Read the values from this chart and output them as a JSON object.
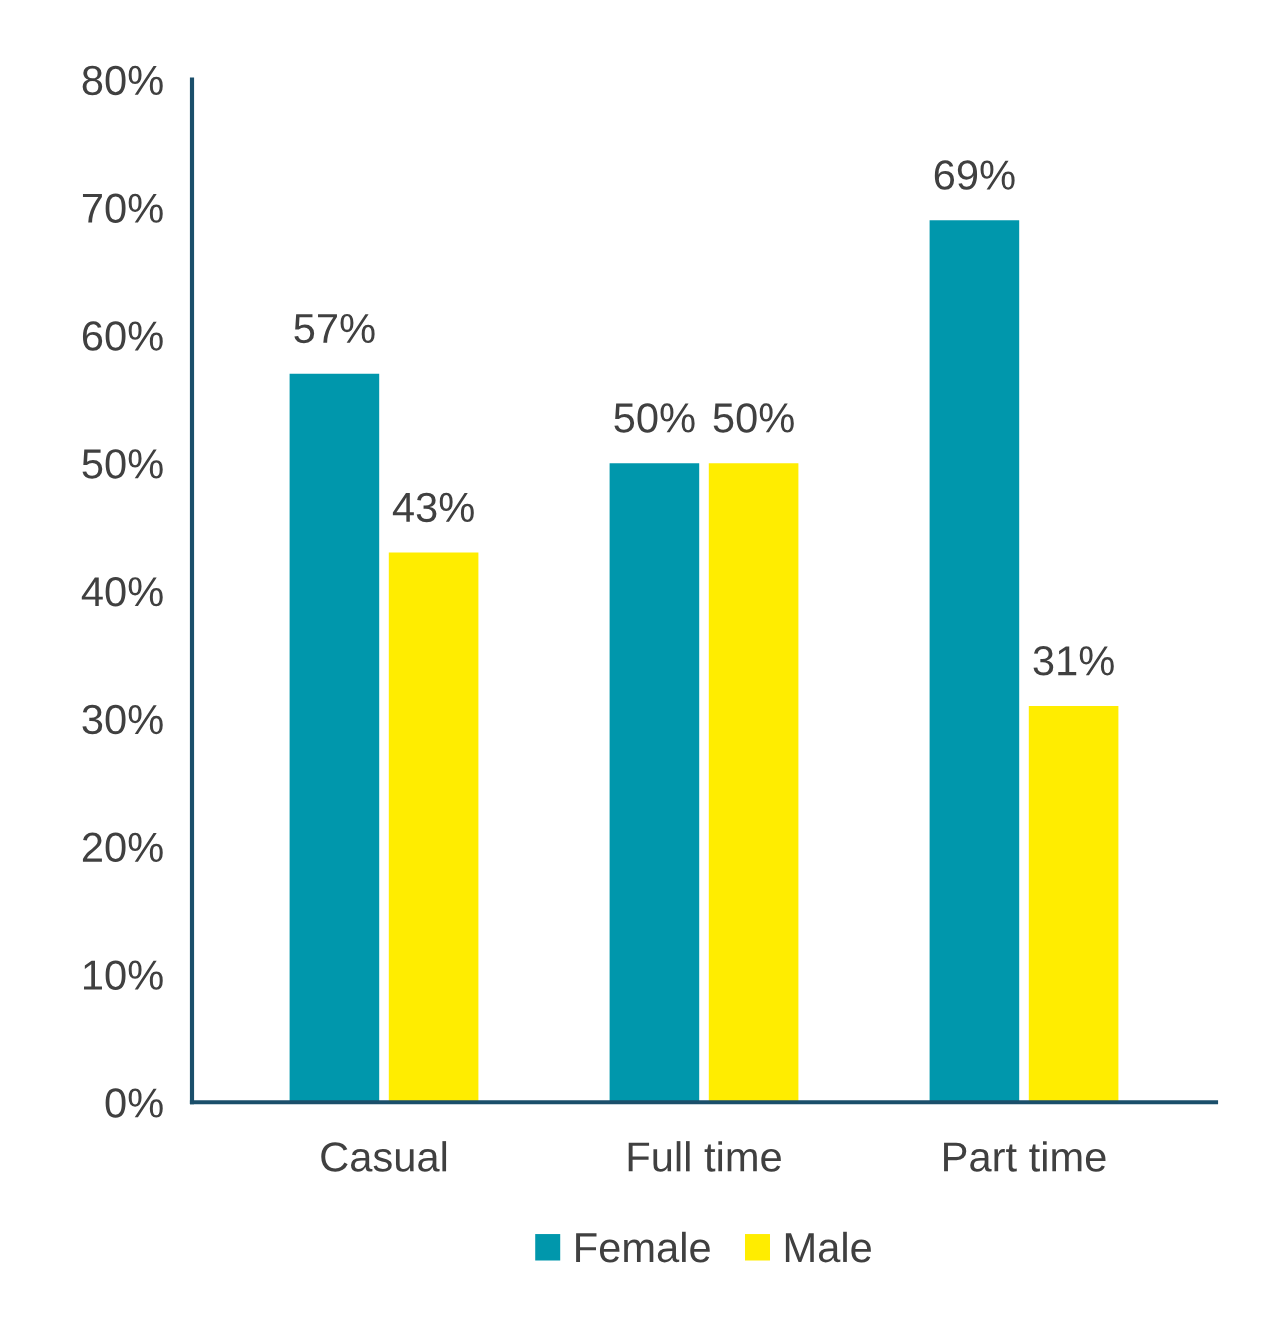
{
  "chart_data": {
    "type": "bar",
    "categories": [
      "Casual",
      "Full time",
      "Part time"
    ],
    "series": [
      {
        "name": "Female",
        "color": "#0097ac",
        "values": [
          57,
          50,
          69
        ],
        "value_labels": [
          "57%",
          "50%",
          "69%"
        ]
      },
      {
        "name": "Male",
        "color": "#ffed00",
        "values": [
          43,
          50,
          31
        ],
        "value_labels": [
          "43%",
          "50%",
          "31%"
        ]
      }
    ],
    "ylim": [
      0,
      80
    ],
    "yticks": [
      {
        "value": 0,
        "label": "0%"
      },
      {
        "value": 10,
        "label": "10%"
      },
      {
        "value": 20,
        "label": "20%"
      },
      {
        "value": 30,
        "label": "30%"
      },
      {
        "value": 40,
        "label": "40%"
      },
      {
        "value": 50,
        "label": "50%"
      },
      {
        "value": 60,
        "label": "60%"
      },
      {
        "value": 70,
        "label": "70%"
      },
      {
        "value": 80,
        "label": "80%"
      }
    ],
    "grid": false,
    "legend": "bottom"
  }
}
